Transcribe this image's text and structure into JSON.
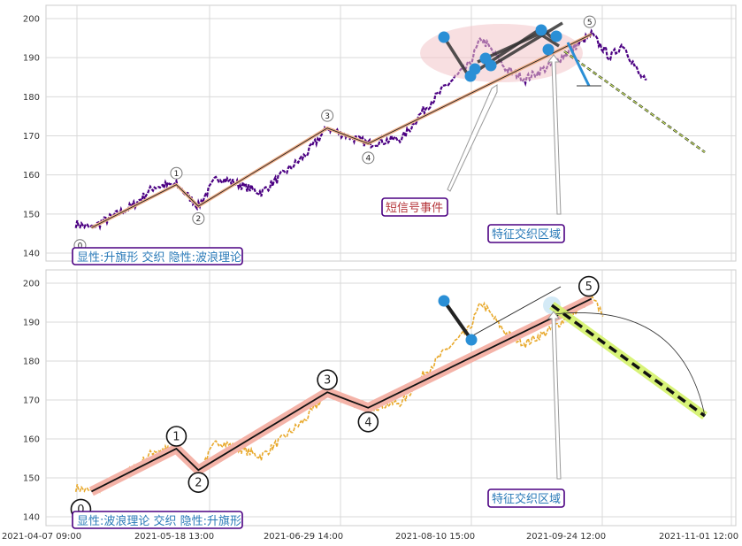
{
  "x_tick_labels": [
    "2021-04-07 09:00",
    "2021-05-18 13:00",
    "2021-06-29 14:00",
    "2021-08-10 15:00",
    "2021-09-24 12:00",
    "2021-11-01 12:00"
  ],
  "chart_data": [
    {
      "type": "line",
      "panel": "top",
      "ylim": [
        138,
        203
      ],
      "yticks": [
        140,
        150,
        160,
        170,
        180,
        190,
        200
      ],
      "grid": true,
      "price_color": "#4b0082",
      "wave_labels": [
        "0",
        "1",
        "2",
        "3",
        "4",
        "5"
      ],
      "wave_points": [
        {
          "label": "0",
          "x": "2021-04-12",
          "y": 146.5
        },
        {
          "label": "1",
          "x": "2021-05-09",
          "y": 157.5
        },
        {
          "label": "2",
          "x": "2021-05-16",
          "y": 152
        },
        {
          "label": "3",
          "x": "2021-06-26",
          "y": 172
        },
        {
          "label": "4",
          "x": "2021-07-09",
          "y": 168
        },
        {
          "label": "5",
          "x": "2021-09-18",
          "y": 196
        }
      ],
      "annotations": [
        {
          "text": "短信号事件",
          "color": "#b5363a"
        },
        {
          "text": "特征交织区域",
          "color": "#2a7ab8"
        },
        {
          "text": "显性:升旗形 交织 隐性:波浪理论",
          "color": "#2a7ab8"
        }
      ],
      "projection_color": "#d4f26a",
      "signal_color": "#2a8fd6"
    },
    {
      "type": "line",
      "panel": "bottom",
      "ylim": [
        138,
        203
      ],
      "yticks": [
        140,
        150,
        160,
        170,
        180,
        190,
        200
      ],
      "grid": true,
      "price_color": "#e8a92c",
      "wave_labels": [
        "0",
        "1",
        "2",
        "3",
        "4",
        "5"
      ],
      "wave_points": [
        {
          "label": "0",
          "x": "2021-04-12",
          "y": 146.5
        },
        {
          "label": "1",
          "x": "2021-05-09",
          "y": 157.5
        },
        {
          "label": "2",
          "x": "2021-05-16",
          "y": 152
        },
        {
          "label": "3",
          "x": "2021-06-26",
          "y": 172
        },
        {
          "label": "4",
          "x": "2021-07-09",
          "y": 168
        },
        {
          "label": "5",
          "x": "2021-09-18",
          "y": 196
        }
      ],
      "annotations": [
        {
          "text": "特征交织区域",
          "color": "#2a7ab8"
        },
        {
          "text": "显性:波浪理论 交织 隐性:升旗形",
          "color": "#2a7ab8"
        }
      ],
      "projection_color": "#d4f26a",
      "signal_color": "#2a8fd6"
    }
  ]
}
